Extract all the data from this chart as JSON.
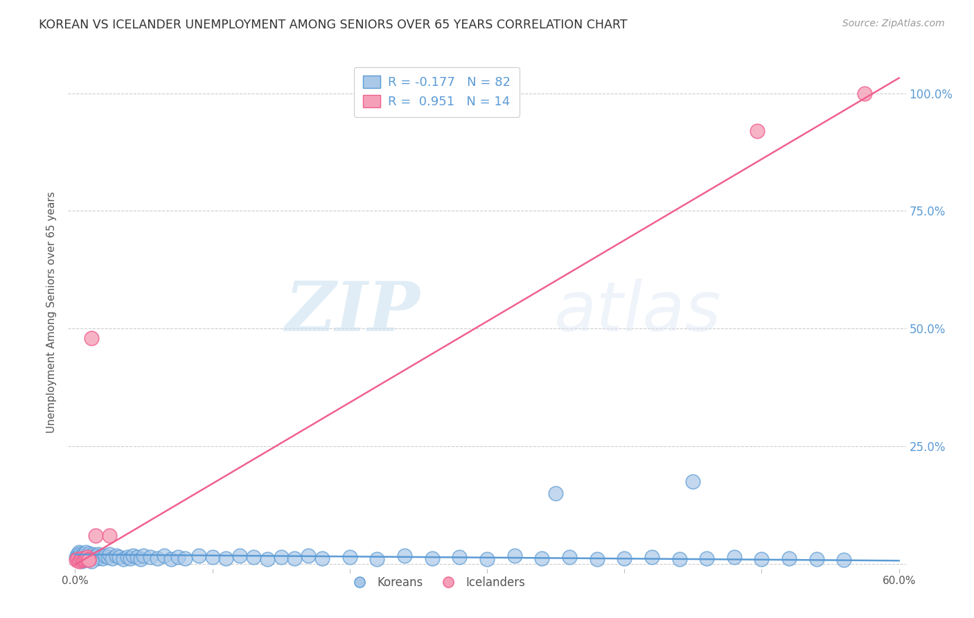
{
  "title": "KOREAN VS ICELANDER UNEMPLOYMENT AMONG SENIORS OVER 65 YEARS CORRELATION CHART",
  "source": "Source: ZipAtlas.com",
  "ylabel": "Unemployment Among Seniors over 65 years",
  "ytick_labels": [
    "25.0%",
    "50.0%",
    "75.0%",
    "100.0%"
  ],
  "ytick_values": [
    0.25,
    0.5,
    0.75,
    1.0
  ],
  "xtick_labels": [
    "0.0%",
    "",
    "",
    "",
    "",
    "",
    "60.0%"
  ],
  "xtick_values": [
    0.0,
    0.1,
    0.2,
    0.3,
    0.4,
    0.5,
    0.6
  ],
  "legend_korean": "R = -0.177   N = 82",
  "legend_icelander": "R =  0.951   N = 14",
  "legend_label_korean": "Koreans",
  "legend_label_icelander": "Icelanders",
  "watermark_zip": "ZIP",
  "watermark_atlas": "atlas",
  "korean_color": "#aac8e8",
  "icelander_color": "#f5a0b8",
  "korean_line_color": "#5b9bd5",
  "icelander_line_color": "#f06090",
  "title_color": "#333333",
  "source_color": "#999999",
  "ylabel_color": "#555555",
  "ytick_color": "#5b9bd5",
  "background_color": "#ffffff",
  "grid_color": "#cccccc",
  "korean_slope": -0.022,
  "korean_intercept": 0.02,
  "icelander_slope": 1.724,
  "icelander_intercept": -0.002,
  "korean_x": [
    0.001,
    0.002,
    0.002,
    0.003,
    0.003,
    0.004,
    0.004,
    0.005,
    0.005,
    0.006,
    0.006,
    0.007,
    0.007,
    0.008,
    0.008,
    0.009,
    0.01,
    0.01,
    0.011,
    0.012,
    0.012,
    0.013,
    0.014,
    0.015,
    0.016,
    0.017,
    0.018,
    0.019,
    0.02,
    0.022,
    0.024,
    0.025,
    0.027,
    0.03,
    0.032,
    0.035,
    0.038,
    0.04,
    0.042,
    0.045,
    0.048,
    0.05,
    0.055,
    0.06,
    0.065,
    0.07,
    0.075,
    0.08,
    0.09,
    0.1,
    0.11,
    0.12,
    0.13,
    0.14,
    0.15,
    0.16,
    0.17,
    0.18,
    0.2,
    0.22,
    0.24,
    0.26,
    0.28,
    0.3,
    0.32,
    0.34,
    0.36,
    0.38,
    0.4,
    0.42,
    0.44,
    0.46,
    0.48,
    0.5,
    0.52,
    0.54,
    0.56,
    0.005,
    0.008,
    0.012,
    0.35,
    0.45
  ],
  "korean_y": [
    0.015,
    0.02,
    0.012,
    0.025,
    0.018,
    0.015,
    0.022,
    0.018,
    0.012,
    0.02,
    0.015,
    0.01,
    0.018,
    0.015,
    0.025,
    0.012,
    0.018,
    0.022,
    0.015,
    0.018,
    0.012,
    0.02,
    0.015,
    0.018,
    0.012,
    0.02,
    0.015,
    0.018,
    0.012,
    0.018,
    0.015,
    0.02,
    0.012,
    0.018,
    0.015,
    0.01,
    0.015,
    0.012,
    0.018,
    0.015,
    0.01,
    0.018,
    0.015,
    0.012,
    0.018,
    0.01,
    0.015,
    0.012,
    0.018,
    0.015,
    0.012,
    0.018,
    0.015,
    0.01,
    0.015,
    0.012,
    0.018,
    0.012,
    0.015,
    0.01,
    0.018,
    0.012,
    0.015,
    0.01,
    0.018,
    0.012,
    0.015,
    0.01,
    0.012,
    0.015,
    0.01,
    0.012,
    0.015,
    0.01,
    0.012,
    0.01,
    0.008,
    0.005,
    0.008,
    0.006,
    0.15,
    0.175
  ],
  "icelander_x": [
    0.001,
    0.002,
    0.003,
    0.004,
    0.005,
    0.006,
    0.007,
    0.008,
    0.009,
    0.01,
    0.012,
    0.015,
    0.025,
    0.01
  ],
  "icelander_y": [
    0.008,
    0.01,
    0.005,
    0.008,
    0.012,
    0.008,
    0.01,
    0.012,
    0.015,
    0.01,
    0.48,
    0.06,
    0.06,
    0.008
  ]
}
